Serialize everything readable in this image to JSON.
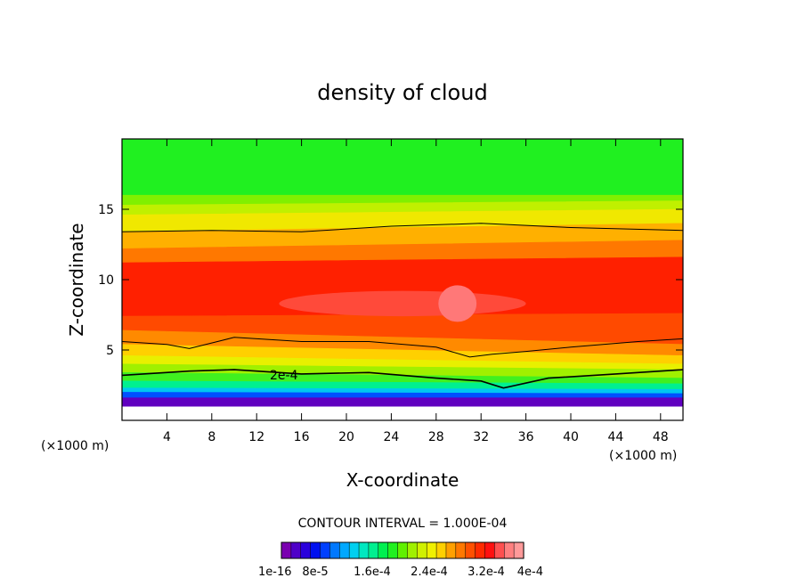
{
  "chart_data": {
    "type": "heatmap",
    "title": "density of cloud",
    "xlabel": "X-coordinate",
    "ylabel": "Z-coordinate",
    "x_unit_left": "(×1000 m)",
    "x_unit_right": "(×1000 m)",
    "xlim": [
      0,
      50
    ],
    "ylim": [
      0,
      20
    ],
    "x_ticks": [
      4,
      8,
      12,
      16,
      20,
      24,
      28,
      32,
      36,
      40,
      44,
      48
    ],
    "y_ticks": [
      5,
      10,
      15
    ],
    "contour_interval_label": "CONTOUR INTERVAL = 1.000E-04",
    "contour_label": "2e-4",
    "colorbar_tick_labels": [
      "1e-16",
      "8e-5",
      "1.6e-4",
      "2.4e-4",
      "3.2e-4",
      "4e-4"
    ],
    "colorbar_colors": [
      "#7a00b0",
      "#4f00c8",
      "#2a00dc",
      "#0010f0",
      "#0040ff",
      "#0078ff",
      "#00a8ff",
      "#00d0f0",
      "#00e8c0",
      "#00f090",
      "#00f050",
      "#20f020",
      "#60f000",
      "#a0f000",
      "#d0f000",
      "#f0f000",
      "#ffd000",
      "#ffa000",
      "#ff7800",
      "#ff5000",
      "#ff2a00",
      "#ff1010",
      "#ff5050",
      "#ff8080",
      "#ff9a9a"
    ],
    "bands": [
      {
        "z_bottom": [
          16,
          16
        ],
        "z_top": [
          20,
          20
        ],
        "color": "#20f020"
      },
      {
        "z_bottom": [
          15.3,
          15.6
        ],
        "z_top": [
          16,
          16
        ],
        "color": "#80f000"
      },
      {
        "z_bottom": [
          14.6,
          15.0
        ],
        "z_top": [
          15.3,
          15.6
        ],
        "color": "#c0f000"
      },
      {
        "z_bottom": [
          13.4,
          14.0
        ],
        "z_top": [
          14.6,
          15.0
        ],
        "color": "#f0e800"
      },
      {
        "z_bottom": [
          12.2,
          12.8
        ],
        "z_top": [
          13.4,
          14.0
        ],
        "color": "#ffb000"
      },
      {
        "z_bottom": [
          11.2,
          11.6
        ],
        "z_top": [
          12.2,
          12.8
        ],
        "color": "#ff7800"
      },
      {
        "z_bottom": [
          7.4,
          7.6
        ],
        "z_top": [
          11.2,
          11.6
        ],
        "color": "#ff2000"
      },
      {
        "z_bottom": [
          6.4,
          5.4
        ],
        "z_top": [
          7.4,
          7.6
        ],
        "color": "#ff4a00"
      },
      {
        "z_bottom": [
          5.4,
          4.6
        ],
        "z_top": [
          6.4,
          5.4
        ],
        "color": "#ff8a00"
      },
      {
        "z_bottom": [
          4.6,
          4.0
        ],
        "z_top": [
          5.4,
          4.6
        ],
        "color": "#ffd000"
      },
      {
        "z_bottom": [
          4.0,
          3.6
        ],
        "z_top": [
          4.6,
          4.0
        ],
        "color": "#e8f000"
      },
      {
        "z_bottom": [
          3.4,
          3.0
        ],
        "z_top": [
          4.0,
          3.6
        ],
        "color": "#a0f000"
      },
      {
        "z_bottom": [
          2.8,
          2.6
        ],
        "z_top": [
          3.4,
          3.0
        ],
        "color": "#40f020"
      },
      {
        "z_bottom": [
          2.3,
          2.2
        ],
        "z_top": [
          2.8,
          2.6
        ],
        "color": "#00f090"
      },
      {
        "z_bottom": [
          2.0,
          1.9
        ],
        "z_top": [
          2.3,
          2.2
        ],
        "color": "#00c8f0"
      },
      {
        "z_bottom": [
          1.6,
          1.6
        ],
        "z_top": [
          2.0,
          1.9
        ],
        "color": "#0050ff"
      },
      {
        "z_bottom": [
          1.0,
          1.0
        ],
        "z_top": [
          1.6,
          1.6
        ],
        "color": "#6000c0"
      }
    ],
    "core_region": {
      "x": [
        14,
        36
      ],
      "z": [
        7.4,
        9.2
      ],
      "color": "#ff4a3a"
    },
    "max_region": {
      "x": [
        28.2,
        31.6
      ],
      "z": [
        7,
        9.6
      ],
      "color": "#ff7878"
    },
    "contour_lines": [
      {
        "x": [
          0,
          8,
          16,
          24,
          32,
          40,
          50
        ],
        "z": [
          13.4,
          13.5,
          13.4,
          13.8,
          14.0,
          13.7,
          13.5
        ]
      },
      {
        "x": [
          0,
          4,
          6,
          10,
          16,
          22,
          28,
          31,
          33,
          36,
          40,
          46,
          50
        ],
        "z": [
          5.6,
          5.4,
          5.1,
          5.9,
          5.6,
          5.6,
          5.2,
          4.5,
          4.7,
          4.9,
          5.2,
          5.6,
          5.8
        ]
      },
      {
        "x": [
          0,
          6,
          10,
          16,
          22,
          28,
          32,
          34,
          38,
          44,
          50
        ],
        "z": [
          3.2,
          3.5,
          3.6,
          3.3,
          3.4,
          3.0,
          2.8,
          2.3,
          3.0,
          3.3,
          3.6
        ]
      }
    ]
  }
}
